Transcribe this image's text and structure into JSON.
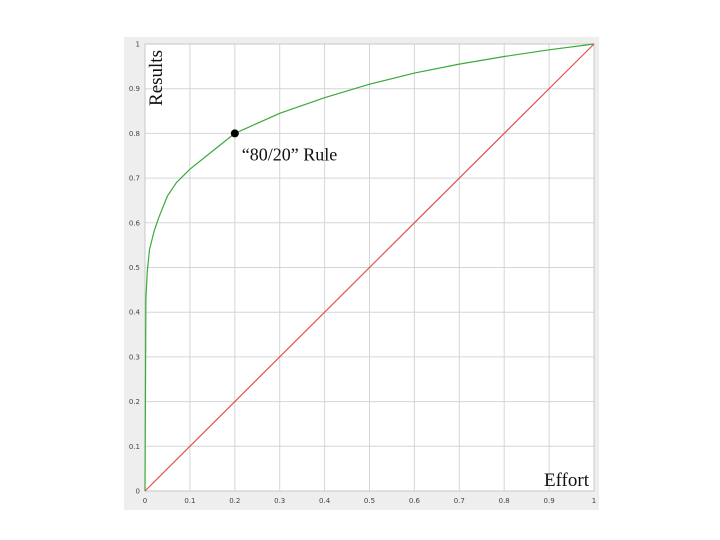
{
  "chart_data": {
    "type": "line",
    "xlabel": "Effort",
    "ylabel": "Results",
    "xlim": [
      0,
      1
    ],
    "ylim": [
      0,
      1
    ],
    "grid": true,
    "x_ticks": [
      "0",
      "0.1",
      "0.2",
      "0.3",
      "0.4",
      "0.5",
      "0.6",
      "0.7",
      "0.8",
      "0.9",
      "1"
    ],
    "y_ticks": [
      "0",
      "0.1",
      "0.2",
      "0.3",
      "0.4",
      "0.5",
      "0.6",
      "0.7",
      "0.8",
      "0.9",
      "1"
    ],
    "series": [
      {
        "color": "#3aaa3a",
        "x": [
          0,
          0.002,
          0.005,
          0.01,
          0.02,
          0.03,
          0.05,
          0.07,
          0.1,
          0.15,
          0.2,
          0.3,
          0.4,
          0.5,
          0.6,
          0.7,
          0.8,
          0.9,
          1.0
        ],
        "y": [
          0,
          0.43,
          0.49,
          0.54,
          0.58,
          0.61,
          0.66,
          0.69,
          0.72,
          0.76,
          0.8,
          0.845,
          0.88,
          0.91,
          0.935,
          0.955,
          0.972,
          0.987,
          1.0
        ]
      },
      {
        "color": "#e05050",
        "x": [
          0,
          1
        ],
        "y": [
          0,
          1
        ]
      }
    ],
    "point": {
      "x": 0.2,
      "y": 0.8,
      "color": "#000000"
    },
    "annotations": [
      {
        "text": "“80/20” Rule",
        "x": 0.2,
        "y": 0.8
      }
    ]
  }
}
